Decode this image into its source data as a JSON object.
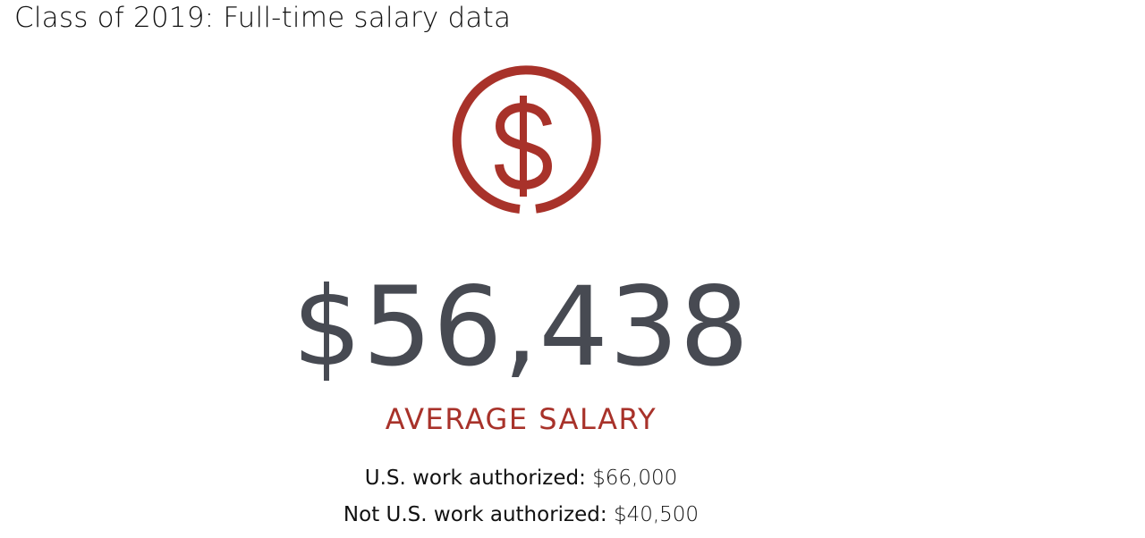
{
  "title": "Class of 2019: Full-time salary data",
  "icon": {
    "name": "dollar-circle-icon",
    "color": "#a8322a"
  },
  "average": {
    "value": "$56,438",
    "label": "AVERAGE SALARY"
  },
  "breakdown": [
    {
      "label": "U.S. work authorized:",
      "value": "$66,000"
    },
    {
      "label": "Not U.S. work authorized:",
      "value": "$40,500"
    }
  ]
}
